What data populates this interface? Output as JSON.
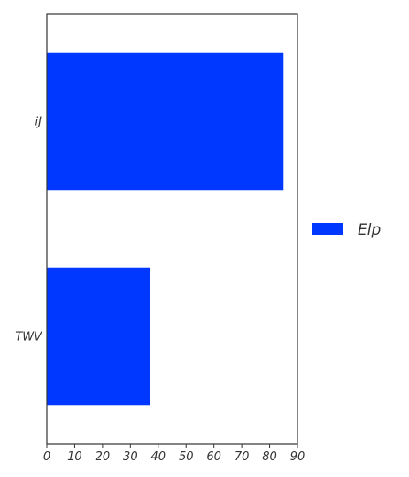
{
  "chart_data": {
    "type": "bar",
    "orientation": "horizontal",
    "categories": [
      "iJ",
      "TWV"
    ],
    "series": [
      {
        "name": "Elp",
        "values": [
          85,
          37
        ],
        "color": "#0038ff"
      }
    ],
    "xlim": [
      0,
      90
    ],
    "xticks": [
      "0",
      "10",
      "20",
      "30",
      "40",
      "50",
      "60",
      "70",
      "80",
      "90"
    ],
    "grid": false,
    "legend": {
      "placement": "right",
      "entries": [
        "Elp"
      ]
    }
  }
}
